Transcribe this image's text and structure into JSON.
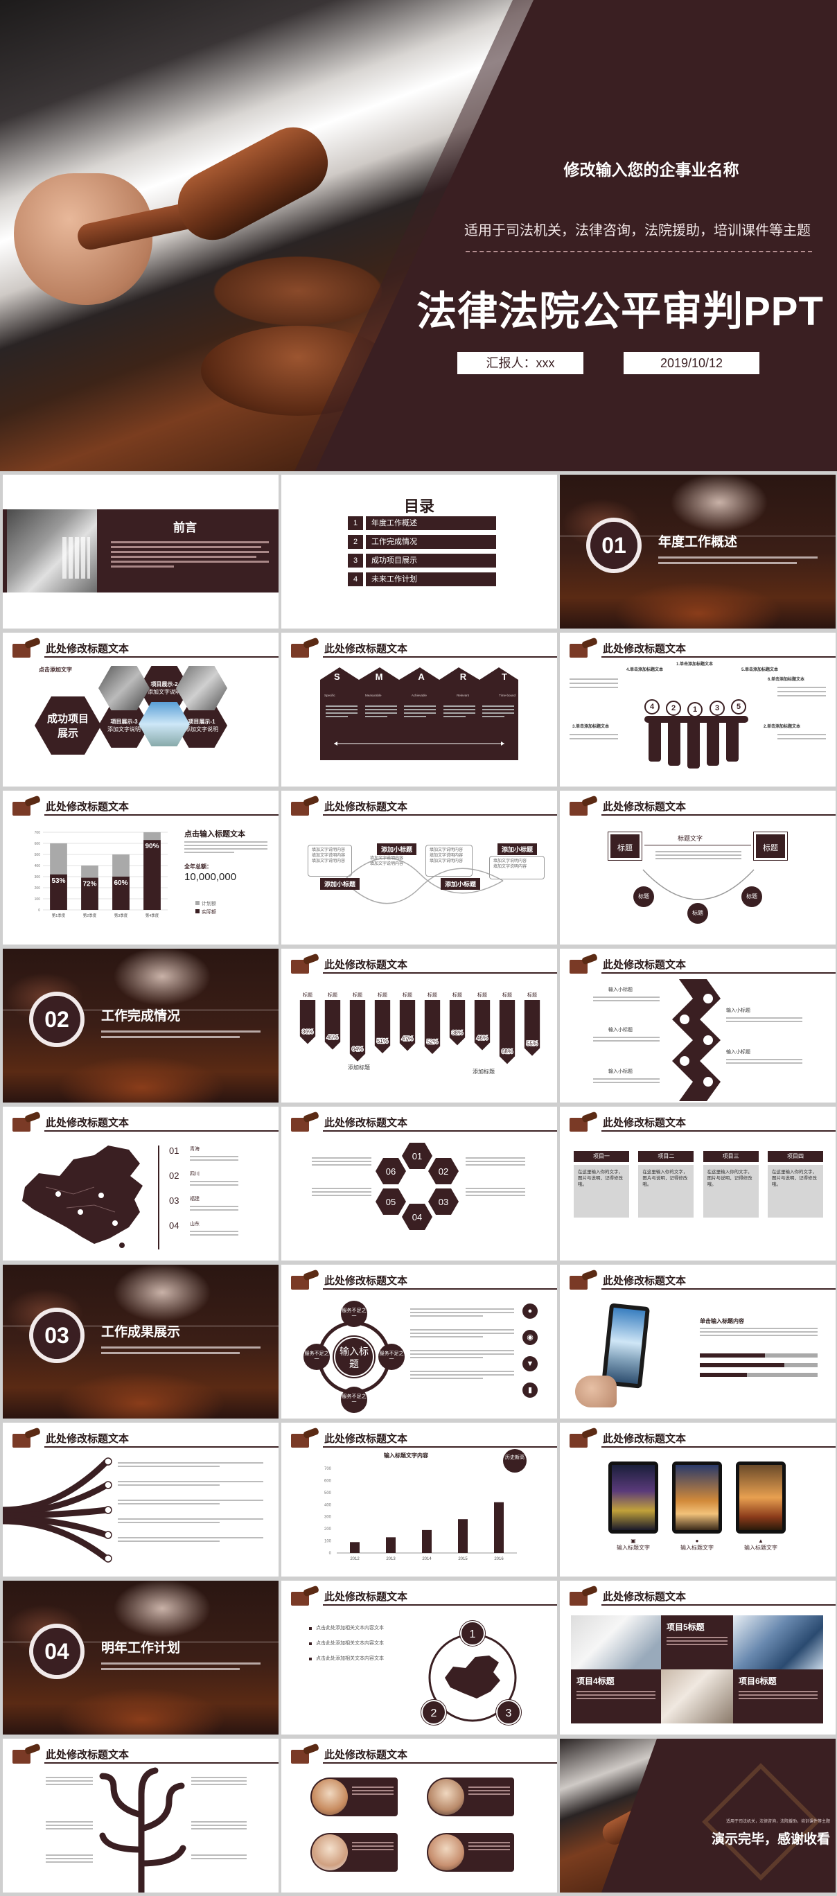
{
  "hero": {
    "company": "修改输入您的企事业名称",
    "subtitle": "适用于司法机关，法律咨询，法院援助，培训课件等主题",
    "title": "法律法院公平审判PPT",
    "reporter": "汇报人：xxx",
    "date": "2019/10/12"
  },
  "common": {
    "slide_title": "此处修改标题文本"
  },
  "preface": {
    "title": "前言"
  },
  "toc": {
    "title": "目录",
    "items": [
      {
        "num": "1",
        "label": "年度工作概述"
      },
      {
        "num": "2",
        "label": "工作完成情况"
      },
      {
        "num": "3",
        "label": "成功项目展示"
      },
      {
        "num": "4",
        "label": "未来工作计划"
      }
    ]
  },
  "chapters": [
    {
      "num": "01",
      "title": "年度工作概述"
    },
    {
      "num": "02",
      "title": "工作完成情况"
    },
    {
      "num": "03",
      "title": "工作成果展示"
    },
    {
      "num": "04",
      "title": "明年工作计划"
    }
  ],
  "success": {
    "click": "点击添加文字",
    "main": "成功项目展示",
    "title2": "项目展示-2",
    "title3": "项目展示-3",
    "title1": "项目展示-1",
    "desc": "添加文字说明"
  },
  "smart": {
    "letters": [
      "S",
      "M",
      "A",
      "R",
      "T"
    ],
    "words": [
      "Specific",
      "Measurable",
      "Achievable",
      "Relevant",
      "Time-bound"
    ]
  },
  "people": {
    "labels": [
      "4.单击添加标题文本",
      "1.单击添加标题文本",
      "5.单击添加标题文本",
      "3.单击添加标题文本",
      "2.单击添加标题文本",
      "6.单击添加标题文本"
    ],
    "nums": [
      "4",
      "2",
      "1",
      "3",
      "5"
    ]
  },
  "bar1": {
    "title": "点击输入标题文本",
    "total_label": "全年总额：",
    "total": "10,000,000",
    "legend": [
      "计划额",
      "实际额"
    ]
  },
  "bar1_chart": {
    "type": "bar",
    "categories": [
      "第1季度",
      "第2季度",
      "第3季度",
      "第4季度"
    ],
    "series": [
      {
        "name": "计划额",
        "values": [
          600,
          400,
          500,
          700
        ]
      },
      {
        "name": "实际额",
        "values": [
          320,
          290,
          300,
          630
        ]
      }
    ],
    "labels": [
      "53%",
      "72%",
      "60%",
      "90%"
    ],
    "yticks": [
      "700",
      "600",
      "500",
      "400",
      "300",
      "200",
      "100",
      "0"
    ],
    "ylim": [
      0,
      700
    ]
  },
  "small_titles": {
    "label": "添加小标题",
    "list": "填加文字说明内容"
  },
  "biaoti": {
    "label": "标题",
    "text": "标题文字"
  },
  "arrows_chart": {
    "type": "bar",
    "title_label": "标题",
    "values": [
      "36%",
      "45%",
      "64%",
      "51%",
      "47%",
      "52%",
      "38%",
      "46%",
      "68%",
      "55%"
    ],
    "annotation": "添加标题"
  },
  "zigzag": {
    "labels": [
      "输入小标题",
      "输入小标题",
      "输入小标题",
      "输入小标题",
      "输入小标题",
      "输入小标题"
    ]
  },
  "china": {
    "items": [
      {
        "num": "01",
        "label": "青海"
      },
      {
        "num": "02",
        "label": "四川"
      },
      {
        "num": "03",
        "label": "福建"
      },
      {
        "num": "04",
        "label": "山东"
      }
    ]
  },
  "hexring": {
    "nums": [
      "01",
      "02",
      "03",
      "04",
      "05",
      "06"
    ]
  },
  "projects": {
    "headers": [
      "项目一",
      "项目二",
      "项目三",
      "项目四"
    ],
    "cell": "在这里输入你的文字，图片与说明，记得修改哦。"
  },
  "cycle": {
    "center": "输入标题",
    "items": [
      "服务不足之一",
      "服务不足之一",
      "服务不足之一",
      "服务不足之一"
    ]
  },
  "tablet": {
    "title": "单击输入标题内容"
  },
  "bar2": {
    "title": "输入标题文字内容",
    "bubble": "历史新高"
  },
  "bar2_chart": {
    "type": "bar",
    "categories": [
      "2012",
      "2013",
      "2014",
      "2015",
      "2016"
    ],
    "values": [
      90,
      130,
      190,
      280,
      420
    ],
    "yticks": [
      "700",
      "600",
      "500",
      "400",
      "300",
      "200",
      "100",
      "0"
    ],
    "ylim": [
      0,
      700
    ]
  },
  "phones": {
    "label": "输入标题文字"
  },
  "bullets": {
    "text": "点击此处添加相关文本内容文本"
  },
  "mapnums": {
    "nums": [
      "1",
      "2",
      "3"
    ]
  },
  "proj5": {
    "labels": [
      "项目5标题",
      "项目4标题",
      "项目6标题"
    ]
  },
  "end": {
    "title": "演示完毕，感谢收看",
    "sub": "适用于司法机关，法律咨询，法院援助，培训课件等主题"
  },
  "colors": {
    "brand": "#3a1f22",
    "bg": "#cfcfcf"
  }
}
